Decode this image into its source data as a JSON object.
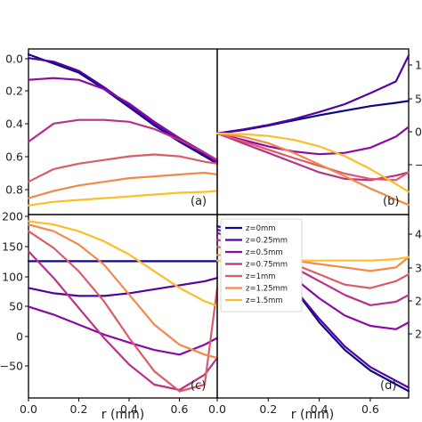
{
  "colors": [
    "#0d0887",
    "#5302a3",
    "#8b0aa5",
    "#b83289",
    "#db5c68",
    "#f48849",
    "#febd2a"
  ],
  "legend": [
    "z=0mm",
    "z=0.25mm",
    "z=0.5mm",
    "z=0.75mm",
    "z=1mm",
    "z=1.25mm",
    "z=1.5mm"
  ],
  "x_axis_label": "r (mm)",
  "x_tick_labels": [
    "0.0",
    "0.2",
    "0.4",
    "0.6",
    "0.0"
  ],
  "x_tick_labels_right": [
    "0.0",
    "0.2",
    "0.4",
    "0.6"
  ],
  "chart_data": [
    {
      "panel": "(a)",
      "type": "line",
      "ylim": [
        0.87,
        -0.04
      ],
      "yticks": [
        "0.0",
        "0.2",
        "0.4",
        "0.6",
        "0.8"
      ],
      "x": [
        0.0,
        0.1,
        0.2,
        0.3,
        0.4,
        0.5,
        0.6,
        0.7,
        0.75
      ],
      "series": [
        {
          "values": [
            0.84,
            0.79,
            0.74,
            0.65,
            0.55,
            0.45,
            0.36,
            0.28,
            0.24
          ]
        },
        {
          "values": [
            0.82,
            0.8,
            0.75,
            0.66,
            0.56,
            0.46,
            0.37,
            0.29,
            0.25
          ]
        },
        {
          "values": [
            0.7,
            0.71,
            0.7,
            0.65,
            0.57,
            0.47,
            0.38,
            0.3,
            0.25
          ]
        },
        {
          "values": [
            0.36,
            0.46,
            0.48,
            0.48,
            0.47,
            0.43,
            0.37,
            0.3,
            0.26
          ]
        },
        {
          "values": [
            0.14,
            0.21,
            0.24,
            0.26,
            0.28,
            0.29,
            0.28,
            0.25,
            0.24
          ]
        },
        {
          "values": [
            0.05,
            0.09,
            0.12,
            0.14,
            0.16,
            0.17,
            0.18,
            0.19,
            0.18
          ]
        },
        {
          "values": [
            0.01,
            0.03,
            0.04,
            0.05,
            0.06,
            0.07,
            0.08,
            0.085,
            0.09
          ]
        }
      ]
    },
    {
      "panel": "(b)",
      "type": "line",
      "ylim": [
        -1.3,
        1.25
      ],
      "yticks": [
        "1",
        "5",
        "0",
        "−"
      ],
      "x": [
        0.0,
        0.1,
        0.2,
        0.3,
        0.4,
        0.5,
        0.6,
        0.7,
        0.75
      ],
      "series": [
        {
          "values": [
            0.0,
            -0.05,
            -0.12,
            -0.2,
            -0.28,
            -0.35,
            -0.42,
            -0.47,
            -0.5
          ]
        },
        {
          "values": [
            0.0,
            -0.06,
            -0.13,
            -0.22,
            -0.33,
            -0.45,
            -0.62,
            -0.8,
            -1.2
          ]
        },
        {
          "values": [
            0.0,
            0.1,
            0.2,
            0.28,
            0.32,
            0.3,
            0.22,
            0.05,
            -0.1
          ]
        },
        {
          "values": [
            0.0,
            0.15,
            0.3,
            0.45,
            0.6,
            0.7,
            0.72,
            0.65,
            0.6
          ]
        },
        {
          "values": [
            0.0,
            0.12,
            0.25,
            0.38,
            0.5,
            0.62,
            0.7,
            0.72,
            0.6
          ]
        },
        {
          "values": [
            0.0,
            0.05,
            0.15,
            0.3,
            0.48,
            0.66,
            0.85,
            1.02,
            1.1
          ]
        },
        {
          "values": [
            0.0,
            0.01,
            0.04,
            0.1,
            0.2,
            0.35,
            0.55,
            0.78,
            0.9
          ]
        }
      ]
    },
    {
      "panel": "(c)",
      "type": "line",
      "ylim": [
        -70,
        205
      ],
      "yticks": [
        "200",
        "150",
        "100",
        "50",
        "0",
        "−50"
      ],
      "x": [
        0.0,
        0.1,
        0.2,
        0.3,
        0.4,
        0.5,
        0.6,
        0.7,
        0.75
      ],
      "series": [
        {
          "values": [
            0,
            0,
            0,
            0,
            0,
            0,
            0,
            0,
            0
          ]
        },
        {
          "values": [
            40,
            48,
            52,
            52,
            48,
            42,
            36,
            30,
            25
          ]
        },
        {
          "values": [
            68,
            80,
            95,
            110,
            122,
            133,
            140,
            125,
            115
          ]
        },
        {
          "values": [
            -15,
            25,
            70,
            115,
            155,
            185,
            193,
            170,
            145
          ]
        },
        {
          "values": [
            -45,
            -20,
            15,
            60,
            115,
            165,
            195,
            185,
            40
          ]
        },
        {
          "values": [
            -55,
            -45,
            -25,
            5,
            50,
            95,
            125,
            140,
            145
          ]
        },
        {
          "values": [
            -60,
            -55,
            -45,
            -30,
            -10,
            15,
            40,
            60,
            67
          ]
        }
      ]
    },
    {
      "panel": "(d)",
      "type": "line",
      "ylim": [
        1.93,
        4.6
      ],
      "yticks": [
        "4",
        "3",
        "2",
        "2"
      ],
      "x": [
        0.0,
        0.1,
        0.2,
        0.3,
        0.4,
        0.5,
        0.6,
        0.7,
        0.75
      ],
      "series": [
        {
          "values": [
            2.1,
            2.2,
            2.5,
            3.0,
            3.5,
            3.9,
            4.2,
            4.4,
            4.5
          ]
        },
        {
          "values": [
            2.15,
            2.25,
            2.55,
            3.0,
            3.45,
            3.85,
            4.15,
            4.35,
            4.45
          ]
        },
        {
          "values": [
            2.2,
            2.3,
            2.55,
            2.85,
            3.15,
            3.4,
            3.55,
            3.6,
            3.5
          ]
        },
        {
          "values": [
            2.3,
            2.35,
            2.5,
            2.7,
            2.9,
            3.1,
            3.25,
            3.2,
            3.1
          ]
        },
        {
          "values": [
            2.4,
            2.45,
            2.52,
            2.65,
            2.8,
            2.95,
            3.0,
            2.9,
            2.8
          ]
        },
        {
          "values": [
            2.52,
            2.52,
            2.55,
            2.6,
            2.65,
            2.7,
            2.75,
            2.7,
            2.55
          ]
        },
        {
          "values": [
            2.6,
            2.6,
            2.6,
            2.6,
            2.6,
            2.6,
            2.6,
            2.58,
            2.55
          ]
        }
      ]
    }
  ]
}
